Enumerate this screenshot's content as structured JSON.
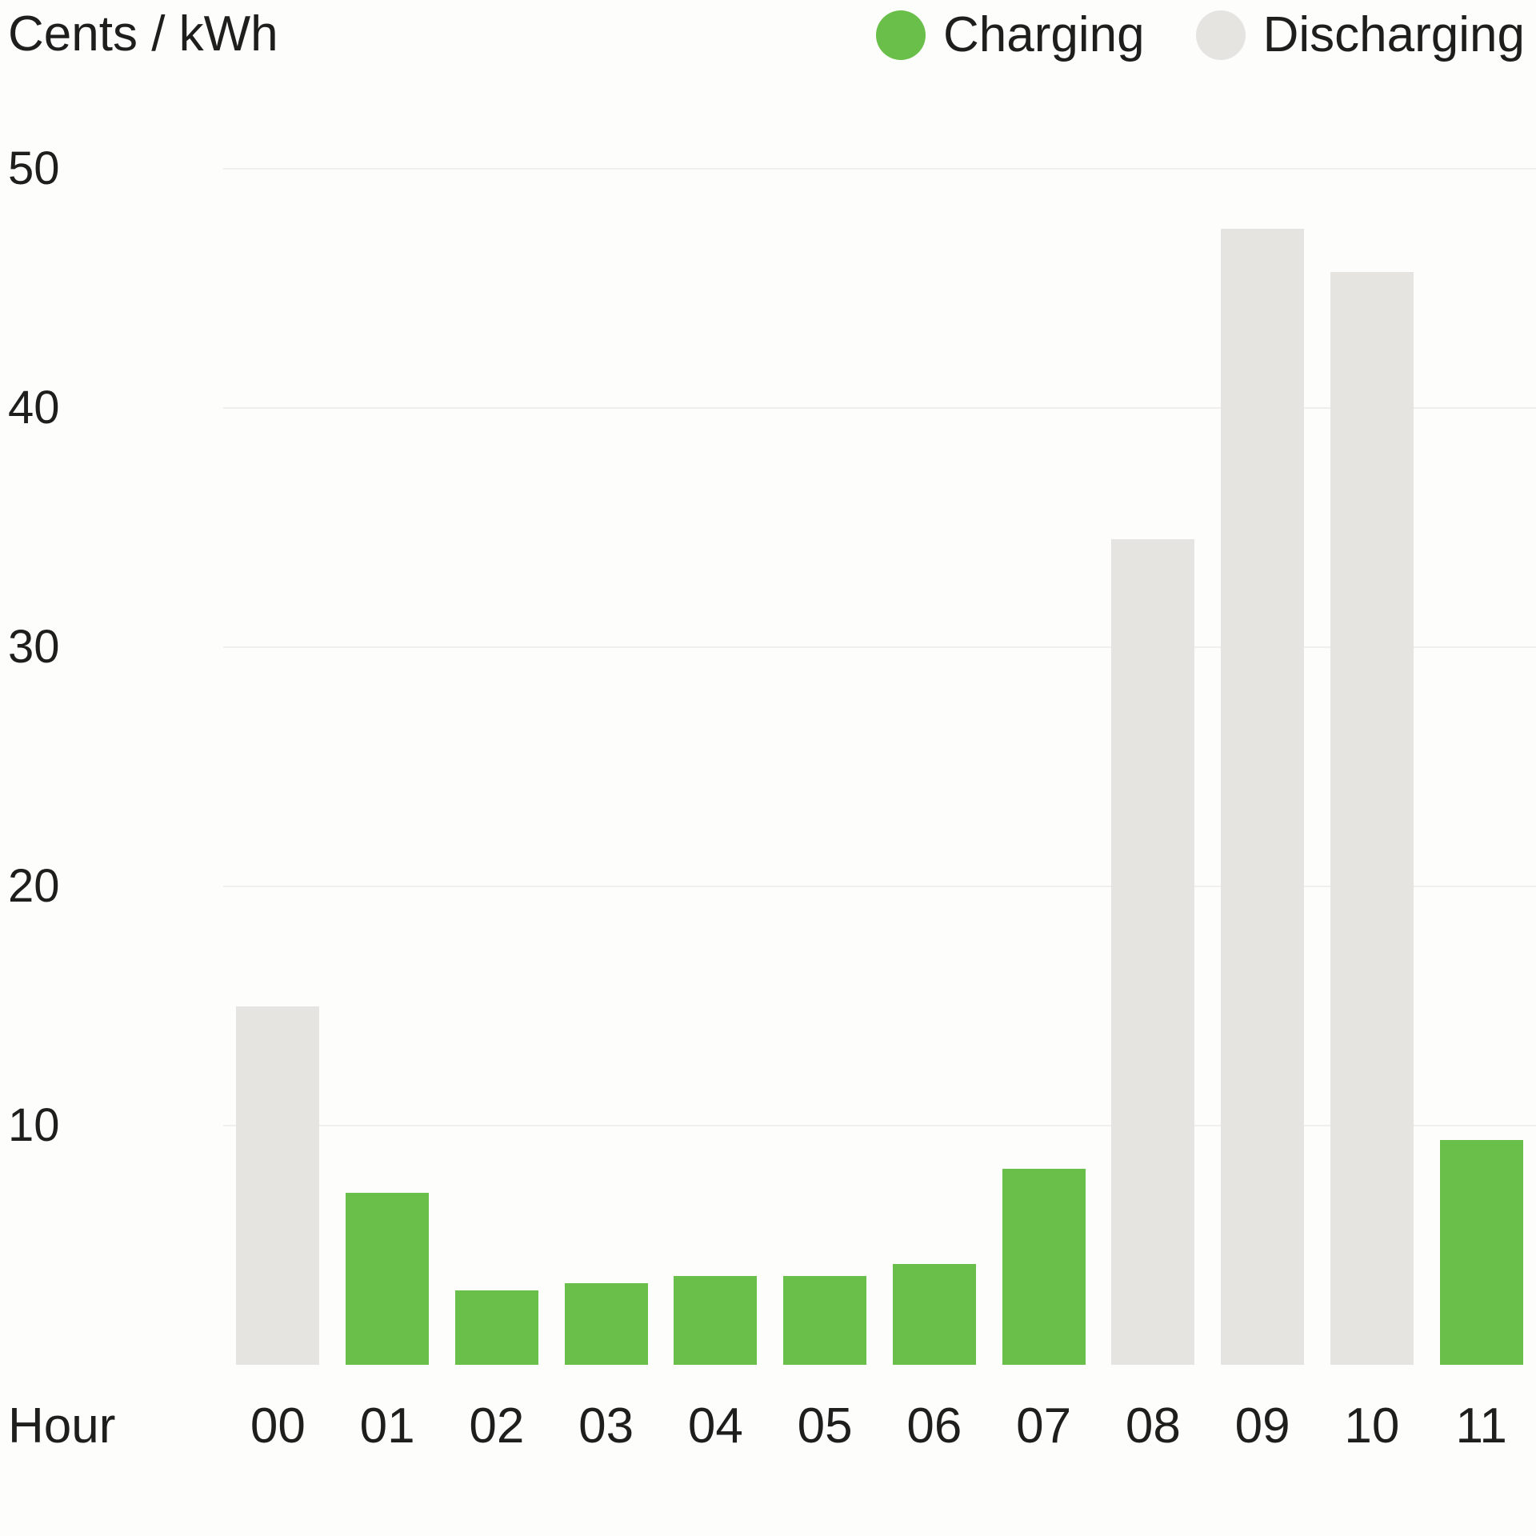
{
  "colors": {
    "charging": "#6abf4a",
    "discharging": "#e5e4e1",
    "grid": "#f0efec",
    "text": "#1e1e1c",
    "background": "#fdfdfc"
  },
  "chart_data": {
    "type": "bar",
    "title": "Cents / kWh",
    "xlabel": "Hour",
    "ylabel": "Cents / kWh",
    "categories": [
      "00",
      "01",
      "02",
      "03",
      "04",
      "05",
      "06",
      "07",
      "08",
      "09",
      "10",
      "11"
    ],
    "values": [
      15,
      7.2,
      3.1,
      3.4,
      3.7,
      3.7,
      4.2,
      8.2,
      34.5,
      47.5,
      45.7,
      9.4
    ],
    "modes": [
      "discharging",
      "charging",
      "charging",
      "charging",
      "charging",
      "charging",
      "charging",
      "charging",
      "discharging",
      "discharging",
      "discharging",
      "charging"
    ],
    "series": [
      {
        "name": "Charging",
        "values": [
          null,
          7.2,
          3.1,
          3.4,
          3.7,
          3.7,
          4.2,
          8.2,
          null,
          null,
          null,
          9.4
        ]
      },
      {
        "name": "Discharging",
        "values": [
          15,
          null,
          null,
          null,
          null,
          null,
          null,
          null,
          34.5,
          47.5,
          45.7,
          null
        ]
      }
    ],
    "ylim": [
      0,
      50
    ],
    "yticks": [
      10,
      20,
      30,
      40,
      50
    ],
    "grid": true,
    "legend_position": "top-right",
    "legend": [
      {
        "label": "Charging",
        "key": "charging"
      },
      {
        "label": "Discharging",
        "key": "discharging"
      }
    ]
  }
}
